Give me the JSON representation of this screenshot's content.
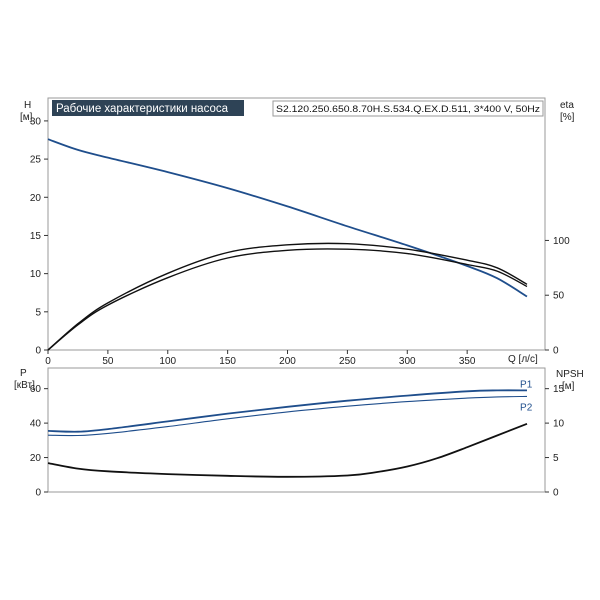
{
  "header": {
    "title": "Рабочие характеристики насоса",
    "model": "S2.120.250.650.8.70H.S.534.Q.EX.D.511, 3*400 V, 50Hz"
  },
  "colors": {
    "head_curve": "#1f4e8c",
    "efficiency_curve": "#111111",
    "power_curve": "#1f4e8c",
    "npsh_curve": "#111111",
    "title_bg": "#2e4356"
  },
  "chart_data": [
    {
      "type": "line",
      "panel": "top",
      "left_axis": {
        "label": "H",
        "unit": "[м]",
        "ylim": [
          0,
          33
        ],
        "ticks": [
          0,
          5,
          10,
          15,
          20,
          25,
          30
        ]
      },
      "right_axis": {
        "label": "eta",
        "unit": "[%]",
        "ylim": [
          0,
          230
        ],
        "ticks": [
          0,
          50,
          100
        ]
      },
      "x_axis": {
        "label": "Q [л/с]",
        "xlim": [
          0,
          415
        ],
        "ticks": [
          0,
          50,
          100,
          150,
          200,
          250,
          300,
          350
        ]
      },
      "grid": false,
      "series": [
        {
          "axis": "left",
          "x": [
            0,
            25,
            50,
            100,
            150,
            200,
            250,
            300,
            350,
            375,
            400
          ],
          "values": [
            27.6,
            26.2,
            25.2,
            23.3,
            21.2,
            18.8,
            16.2,
            13.7,
            11.0,
            9.4,
            7.0
          ]
        },
        {
          "axis": "right",
          "x": [
            0,
            25,
            50,
            100,
            150,
            200,
            250,
            300,
            350,
            375,
            400
          ],
          "values": [
            0,
            24,
            43,
            70,
            89,
            96,
            97,
            92,
            82,
            75,
            60
          ]
        },
        {
          "axis": "right",
          "x": [
            0,
            25,
            50,
            100,
            150,
            200,
            250,
            300,
            350,
            375,
            400
          ],
          "values": [
            0,
            23,
            41,
            66,
            84,
            91,
            92,
            88,
            78,
            72,
            58
          ]
        }
      ]
    },
    {
      "type": "line",
      "panel": "bottom",
      "left_axis": {
        "label": "P",
        "unit": "[кВт]",
        "ylim": [
          0,
          72
        ],
        "ticks": [
          0,
          20,
          40,
          60
        ]
      },
      "right_axis": {
        "label": "NPSH",
        "unit": "[м]",
        "ylim": [
          0,
          18
        ],
        "ticks": [
          0,
          5,
          10,
          15
        ]
      },
      "x_axis": {
        "xlim": [
          0,
          415
        ]
      },
      "grid": false,
      "series": [
        {
          "name": "P1",
          "axis": "left",
          "x": [
            0,
            25,
            50,
            100,
            150,
            200,
            250,
            300,
            350,
            375,
            400
          ],
          "values": [
            35.5,
            35,
            36.5,
            41,
            45.5,
            49.5,
            53,
            56,
            58.5,
            59,
            59
          ]
        },
        {
          "name": "P2",
          "axis": "left",
          "x": [
            0,
            25,
            50,
            100,
            150,
            200,
            250,
            300,
            350,
            375,
            400
          ],
          "values": [
            33,
            32.8,
            34,
            38,
            42.5,
            46.5,
            49.8,
            52.5,
            54.5,
            55.2,
            55.5
          ]
        },
        {
          "axis": "right",
          "x": [
            0,
            25,
            50,
            100,
            150,
            200,
            250,
            275,
            300,
            325,
            350,
            375,
            400
          ],
          "values": [
            4.2,
            3.4,
            3.0,
            2.6,
            2.35,
            2.2,
            2.4,
            2.9,
            3.7,
            4.9,
            6.5,
            8.2,
            9.9
          ]
        }
      ]
    }
  ]
}
